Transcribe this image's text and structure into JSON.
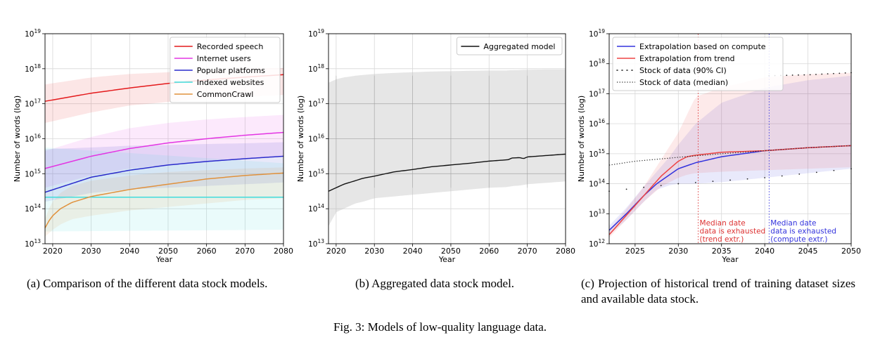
{
  "figure": {
    "caption": "Fig. 3: Models of low-quality language data.",
    "subcaptions": {
      "a": "(a) Comparison of the different data stock models.",
      "b": "(b) Aggregated data stock model.",
      "c": "(c) Projection of historical trend of training dataset sizes and available data stock."
    }
  },
  "chart_data": [
    {
      "id": "a",
      "type": "line",
      "xlabel": "Year",
      "ylabel": "Number of words (log)",
      "xlim": [
        2018,
        2080
      ],
      "ylim_exp": [
        13,
        19
      ],
      "xticks": [
        2020,
        2030,
        2040,
        2050,
        2060,
        2070,
        2080
      ],
      "grid": true,
      "legend_position": "top-right",
      "series": [
        {
          "name": "Recorded speech",
          "color": "#e41a1c",
          "x": [
            2018,
            2030,
            2040,
            2050,
            2060,
            2070,
            2080
          ],
          "log10": [
            17.07,
            17.3,
            17.45,
            17.58,
            17.68,
            17.76,
            17.83
          ],
          "lo": [
            16.45,
            16.75,
            16.95,
            17.05,
            17.15,
            17.2,
            17.25
          ],
          "hi": [
            17.55,
            17.75,
            17.85,
            17.9,
            17.95,
            18.0,
            18.02
          ]
        },
        {
          "name": "Internet users",
          "color": "#e335e3",
          "x": [
            2018,
            2030,
            2040,
            2050,
            2060,
            2070,
            2080
          ],
          "log10": [
            15.15,
            15.5,
            15.72,
            15.88,
            16.0,
            16.1,
            16.18
          ],
          "lo": [
            14.6,
            14.95,
            15.15,
            15.25,
            15.35,
            15.45,
            15.5
          ],
          "hi": [
            15.65,
            16.05,
            16.3,
            16.45,
            16.55,
            16.62,
            16.68
          ]
        },
        {
          "name": "Popular platforms",
          "color": "#2a2acb",
          "x": [
            2018,
            2030,
            2040,
            2050,
            2060,
            2070,
            2080
          ],
          "log10": [
            14.47,
            14.9,
            15.1,
            15.25,
            15.35,
            15.43,
            15.5
          ],
          "lo": [
            14.2,
            14.45,
            14.55,
            14.6,
            14.65,
            14.7,
            14.75
          ],
          "hi": [
            15.7,
            15.75,
            15.8,
            15.82,
            15.85,
            15.87,
            15.9
          ]
        },
        {
          "name": "Indexed websites",
          "color": "#40dcdc",
          "x": [
            2018,
            2080
          ],
          "log10": [
            14.33,
            14.33
          ],
          "lo": [
            13.35,
            13.4
          ],
          "hi": [
            15.75,
            15.3
          ]
        },
        {
          "name": "CommonCrawl",
          "color": "#e0913c",
          "x": [
            2018,
            2019,
            2020,
            2022,
            2025,
            2030,
            2040,
            2050,
            2060,
            2070,
            2080
          ],
          "log10": [
            13.45,
            13.65,
            13.8,
            14.0,
            14.18,
            14.35,
            14.55,
            14.7,
            14.85,
            14.95,
            15.02
          ],
          "lo": [
            13.2,
            13.3,
            13.4,
            13.55,
            13.7,
            13.8,
            13.95,
            14.05,
            14.15,
            14.25,
            14.3
          ],
          "hi": [
            13.7,
            14.0,
            14.2,
            14.45,
            14.65,
            14.8,
            14.95,
            15.05,
            15.1,
            15.15,
            15.18
          ]
        }
      ]
    },
    {
      "id": "b",
      "type": "line",
      "xlabel": "Year",
      "ylabel": "Number of words (log)",
      "xlim": [
        2018,
        2080
      ],
      "ylim_exp": [
        13,
        19
      ],
      "xticks": [
        2020,
        2030,
        2040,
        2050,
        2060,
        2070,
        2080
      ],
      "grid": true,
      "legend_position": "top-right",
      "series": [
        {
          "name": "Aggregated model",
          "color": "#111111",
          "x": [
            2018,
            2020,
            2022,
            2025,
            2027,
            2030,
            2035,
            2040,
            2045,
            2050,
            2055,
            2060,
            2065,
            2066,
            2068,
            2069,
            2070,
            2075,
            2080
          ],
          "log10": [
            14.5,
            14.6,
            14.7,
            14.8,
            14.87,
            14.93,
            15.05,
            15.12,
            15.2,
            15.25,
            15.3,
            15.36,
            15.4,
            15.45,
            15.46,
            15.43,
            15.48,
            15.52,
            15.56
          ],
          "lo": [
            13.5,
            13.9,
            14.0,
            14.15,
            14.2,
            14.3,
            14.35,
            14.4,
            14.45,
            14.5,
            14.55,
            14.6,
            14.62,
            14.65,
            14.66,
            14.68,
            14.7,
            14.74,
            14.78
          ],
          "hi": [
            17.6,
            17.7,
            17.75,
            17.8,
            17.82,
            17.85,
            17.88,
            17.9,
            17.92,
            17.93,
            17.94,
            17.95,
            17.95,
            17.96,
            17.96,
            17.97,
            17.97,
            17.98,
            17.98
          ]
        }
      ]
    },
    {
      "id": "c",
      "type": "line",
      "xlabel": "Year",
      "ylabel": "Number of words (log)",
      "xlim": [
        2022,
        2050
      ],
      "ylim_exp": [
        12,
        19
      ],
      "xticks": [
        2025,
        2030,
        2035,
        2040,
        2045,
        2050
      ],
      "grid": true,
      "legend_position": "top-left",
      "series": [
        {
          "name": "Extrapolation based on compute",
          "color": "#3333dd",
          "style": "solid",
          "x": [
            2022,
            2024,
            2026,
            2027.5,
            2029,
            2030,
            2032,
            2035,
            2040,
            2045,
            2050
          ],
          "log10": [
            12.45,
            13.0,
            13.6,
            14.0,
            14.3,
            14.5,
            14.7,
            14.9,
            15.1,
            15.2,
            15.27
          ],
          "lo": [
            12.3,
            12.8,
            13.4,
            13.8,
            13.95,
            14.0,
            14.0,
            14.05,
            14.2,
            14.35,
            14.5
          ],
          "hi": [
            12.6,
            13.2,
            13.9,
            14.4,
            14.9,
            15.3,
            16.0,
            16.7,
            17.2,
            17.45,
            17.6
          ]
        },
        {
          "name": "Extrapolation from trend",
          "color": "#ee4444",
          "style": "solid",
          "x": [
            2022,
            2024,
            2026,
            2028,
            2030,
            2031,
            2032,
            2035,
            2040,
            2045,
            2050
          ],
          "log10": [
            12.3,
            12.95,
            13.6,
            14.25,
            14.75,
            14.9,
            14.95,
            15.05,
            15.1,
            15.2,
            15.27
          ],
          "lo": [
            12.2,
            12.8,
            13.4,
            13.9,
            14.2,
            14.3,
            14.35,
            14.4,
            14.45,
            14.5,
            14.55
          ],
          "hi": [
            12.45,
            13.15,
            13.9,
            14.8,
            15.7,
            16.3,
            16.9,
            17.2,
            17.55,
            17.65,
            17.7
          ]
        },
        {
          "name": "Stock of data (90% CI)",
          "color": "#222222",
          "style": "dots",
          "x": [
            2022,
            2025,
            2030,
            2035,
            2040,
            2045,
            2050
          ],
          "log10": [
            13.75,
            13.85,
            14.0,
            14.1,
            14.2,
            14.35,
            14.5
          ]
        },
        {
          "name": "Stock of data (90% CI) upper",
          "color": "#222222",
          "style": "dots",
          "x": [
            2040.5,
            2045,
            2050
          ],
          "log10": [
            17.6,
            17.63,
            17.7
          ]
        },
        {
          "name": "Stock of data (median)",
          "color": "#222222",
          "style": "dotted",
          "x": [
            2022,
            2025,
            2030,
            2035,
            2040,
            2045,
            2050
          ],
          "log10": [
            14.62,
            14.75,
            14.88,
            15.0,
            15.1,
            15.2,
            15.27
          ]
        }
      ],
      "annotations": [
        {
          "year": 2032.3,
          "color": "#dd3333",
          "lines": [
            "Median date",
            "data is exhausted",
            "(trend extr.)"
          ]
        },
        {
          "year": 2040.5,
          "color": "#3333dd",
          "lines": [
            "Median date",
            "data is exhausted",
            "(compute extr.)"
          ]
        }
      ]
    }
  ]
}
